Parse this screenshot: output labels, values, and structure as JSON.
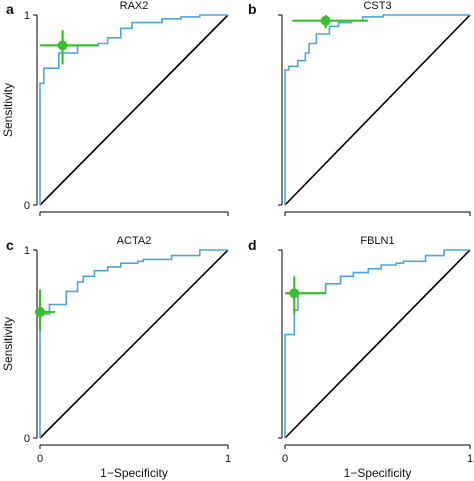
{
  "chart_data": [
    {
      "type": "line",
      "letter": "a",
      "title": "RAX2",
      "xlabel": "",
      "ylabel": "Sensitivity",
      "xlim": [
        0,
        1
      ],
      "ylim": [
        0,
        1
      ],
      "x_ticks": [],
      "y_ticks": [
        "0",
        "1"
      ],
      "series": [
        {
          "x": [
            0,
            0,
            0.02,
            0.02,
            0.1,
            0.1,
            0.2,
            0.2,
            0.31,
            0.31,
            0.36,
            0.36,
            0.43,
            0.43,
            0.49,
            0.49,
            0.65,
            0.65,
            0.75,
            0.75,
            0.85,
            0.85,
            1
          ],
          "y": [
            0,
            0.64,
            0.64,
            0.72,
            0.72,
            0.8,
            0.8,
            0.84,
            0.84,
            0.85,
            0.85,
            0.88,
            0.88,
            0.93,
            0.93,
            0.96,
            0.96,
            0.98,
            0.98,
            0.99,
            0.99,
            1,
            1
          ]
        }
      ],
      "reference_line": [
        [
          0,
          0
        ],
        [
          1,
          1
        ]
      ],
      "point": {
        "x": 0.12,
        "y": 0.84,
        "x_err": [
          0.0,
          0.31
        ],
        "y_err": [
          0.74,
          0.92
        ]
      }
    },
    {
      "type": "line",
      "letter": "b",
      "title": "CST3",
      "xlabel": "",
      "ylabel": "",
      "xlim": [
        0,
        1
      ],
      "ylim": [
        0,
        1
      ],
      "x_ticks": [],
      "y_ticks": [],
      "series": [
        {
          "x": [
            0,
            0,
            0.02,
            0.02,
            0.07,
            0.07,
            0.11,
            0.11,
            0.13,
            0.13,
            0.17,
            0.17,
            0.24,
            0.24,
            0.29,
            0.29,
            0.36,
            0.36,
            0.42,
            0.42,
            0.53,
            0.53,
            0.76,
            0.76,
            1
          ],
          "y": [
            0,
            0.71,
            0.71,
            0.73,
            0.73,
            0.76,
            0.76,
            0.8,
            0.8,
            0.85,
            0.85,
            0.9,
            0.9,
            0.94,
            0.94,
            0.96,
            0.96,
            0.97,
            0.97,
            0.99,
            0.99,
            1,
            1,
            1,
            1
          ]
        }
      ],
      "reference_line": [
        [
          0,
          0
        ],
        [
          1,
          1
        ]
      ],
      "point": {
        "x": 0.22,
        "y": 0.97,
        "x_err": [
          0.04,
          0.45
        ],
        "y_err": [
          0.93,
          1.0
        ]
      }
    },
    {
      "type": "line",
      "letter": "c",
      "title": "ACTA2",
      "xlabel": "1−Specificity",
      "ylabel": "Sensitivity",
      "xlim": [
        0,
        1
      ],
      "ylim": [
        0,
        1
      ],
      "x_ticks": [
        "0",
        "1"
      ],
      "y_ticks": [
        "0",
        "1"
      ],
      "series": [
        {
          "x": [
            0,
            0,
            0.05,
            0.05,
            0.14,
            0.14,
            0.2,
            0.2,
            0.23,
            0.23,
            0.29,
            0.29,
            0.36,
            0.36,
            0.43,
            0.43,
            0.52,
            0.52,
            0.55,
            0.55,
            0.7,
            0.7,
            0.85,
            0.85,
            1
          ],
          "y": [
            0,
            0.66,
            0.66,
            0.71,
            0.71,
            0.78,
            0.78,
            0.83,
            0.83,
            0.86,
            0.86,
            0.89,
            0.89,
            0.91,
            0.91,
            0.93,
            0.93,
            0.94,
            0.94,
            0.95,
            0.95,
            0.97,
            0.97,
            1,
            1
          ]
        }
      ],
      "reference_line": [
        [
          0,
          0
        ],
        [
          1,
          1
        ]
      ],
      "point": {
        "x": 0.0,
        "y": 0.67,
        "x_err": [
          0.0,
          0.08
        ],
        "y_err": [
          0.57,
          0.79
        ]
      }
    },
    {
      "type": "line",
      "letter": "d",
      "title": "FBLN1",
      "xlabel": "1−Specificity",
      "ylabel": "",
      "xlim": [
        0,
        1
      ],
      "ylim": [
        0,
        1
      ],
      "x_ticks": [
        "0",
        "1"
      ],
      "y_ticks": [],
      "series": [
        {
          "x": [
            0,
            0,
            0.05,
            0.05,
            0.07,
            0.07,
            0.22,
            0.22,
            0.3,
            0.3,
            0.37,
            0.37,
            0.45,
            0.45,
            0.52,
            0.52,
            0.6,
            0.6,
            0.64,
            0.64,
            0.76,
            0.76,
            0.86,
            0.86,
            1
          ],
          "y": [
            0,
            0.55,
            0.55,
            0.68,
            0.68,
            0.77,
            0.77,
            0.82,
            0.82,
            0.86,
            0.86,
            0.88,
            0.88,
            0.9,
            0.9,
            0.92,
            0.92,
            0.93,
            0.93,
            0.94,
            0.94,
            0.97,
            0.97,
            1,
            1
          ]
        }
      ],
      "reference_line": [
        [
          0,
          0
        ],
        [
          1,
          1
        ]
      ],
      "point": {
        "x": 0.05,
        "y": 0.77,
        "x_err": [
          0.0,
          0.22
        ],
        "y_err": [
          0.66,
          0.86
        ]
      }
    }
  ],
  "colors": {
    "roc": "#4ea5d9",
    "diagonal": "#000000",
    "point": "#3cbf2f",
    "axis": "#000000"
  }
}
